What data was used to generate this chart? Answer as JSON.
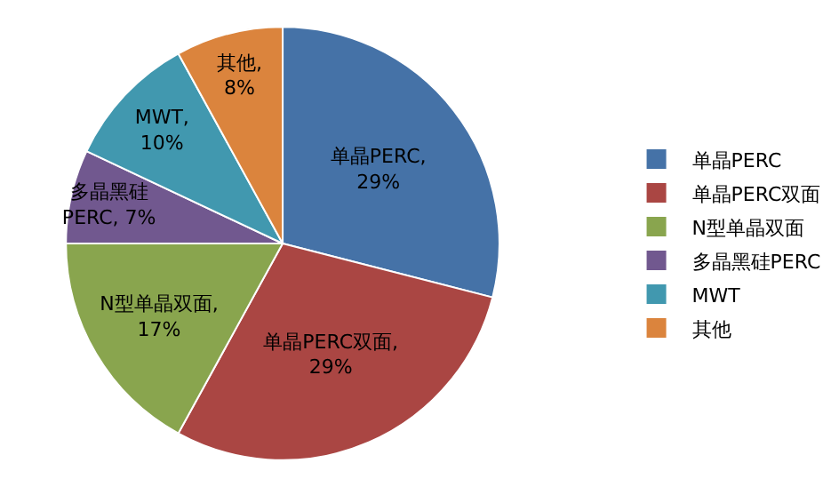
{
  "chart_data": {
    "type": "pie",
    "categories": [
      "单晶PERC",
      "单晶PERC双面",
      "N型单晶双面",
      "多晶黑硅PERC",
      "MWT",
      "其他"
    ],
    "values": [
      29,
      29,
      17,
      7,
      10,
      8
    ],
    "colors": [
      "#4572a7",
      "#aa4643",
      "#89a54e",
      "#71588f",
      "#4198af",
      "#db843d"
    ],
    "value_labels": [
      "单晶PERC, 29%",
      "单晶PERC双面, 29%",
      "N型单晶双面, 17%",
      "多晶黑硅PERC, 7%",
      "MWT, 10%",
      "其他, 8%"
    ],
    "legend": "right"
  }
}
